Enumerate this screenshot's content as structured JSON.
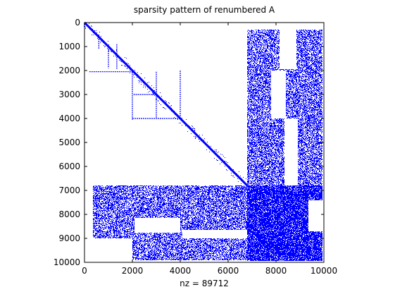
{
  "chart_data": {
    "type": "scatter",
    "title": "sparsity pattern of renumbered A",
    "xlabel": "nz = 89712",
    "ylabel": "",
    "xlim": [
      0,
      10000
    ],
    "ylim": [
      0,
      10000
    ],
    "y_axis_direction": "top-to-bottom (reversed)",
    "xticks": [
      0,
      2000,
      4000,
      6000,
      8000,
      10000
    ],
    "yticks": [
      0,
      1000,
      2000,
      3000,
      4000,
      5000,
      6000,
      7000,
      8000,
      9000,
      10000
    ],
    "grid": false,
    "legend": "none",
    "marker_color": "#0000ff",
    "series": [
      {
        "pattern": "diagonal",
        "from": [
          0,
          0
        ],
        "to": [
          6800,
          6800
        ]
      },
      {
        "pattern": "off-diagonal rows and columns",
        "horizontal_segments": [
          {
            "row": 2050,
            "x_from": 200,
            "x_to": 2000
          },
          {
            "row": 3000,
            "x_from": 2050,
            "x_to": 3000
          },
          {
            "row": 4000,
            "x_from": 2000,
            "x_to": 4000
          }
        ],
        "vertical_segments": [
          {
            "col": 600,
            "y_from": 500,
            "y_to": 1100
          },
          {
            "col": 1000,
            "y_from": 1000,
            "y_to": 1900
          },
          {
            "col": 1350,
            "y_from": 900,
            "y_to": 1950
          },
          {
            "col": 2000,
            "y_from": 2050,
            "y_to": 4050
          },
          {
            "col": 3000,
            "y_from": 2050,
            "y_to": 4000
          },
          {
            "col": 4000,
            "y_from": 2000,
            "y_to": 4000
          }
        ]
      },
      {
        "pattern": "dense blocks",
        "blocks": [
          {
            "x": [
              6800,
              9950
            ],
            "y": [
              300,
              6800
            ],
            "density": 0.55
          },
          {
            "x": [
              200,
              6800
            ],
            "y": [
              6800,
              9900
            ],
            "density": 0.55
          },
          {
            "x": [
              6800,
              9950
            ],
            "y": [
              6800,
              9950
            ],
            "density": 0.85
          }
        ]
      },
      {
        "pattern": "empty regions",
        "holes": [
          {
            "x": [
              8150,
              8850
            ],
            "y": [
              250,
              1950
            ]
          },
          {
            "x": [
              7800,
              8400
            ],
            "y": [
              2000,
              4000
            ]
          },
          {
            "x": [
              8350,
              8900
            ],
            "y": [
              4000,
              6800
            ]
          },
          {
            "x": [
              200,
              350
            ],
            "y": [
              6800,
              9900
            ]
          },
          {
            "x": [
              250,
              2000
            ],
            "y": [
              9000,
              9900
            ]
          },
          {
            "x": [
              2100,
              4000
            ],
            "y": [
              8150,
              8750
            ]
          },
          {
            "x": [
              4100,
              6800
            ],
            "y": [
              8650,
              9000
            ]
          },
          {
            "x": [
              9350,
              9950
            ],
            "y": [
              7400,
              8700
            ]
          }
        ]
      }
    ]
  }
}
